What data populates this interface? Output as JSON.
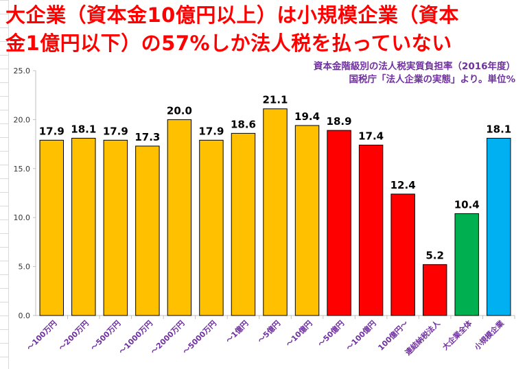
{
  "title_line1": "大企業（資本金10億円以上）は小規模企業（資本",
  "title_line2": "金1億円以下）の57%しか法人税を払っていない",
  "note_line1": "資本金階級別の法人税実質負担率（2016年度）",
  "note_line2": "国税庁「法人企業の実態」より。単位%",
  "chart_data": {
    "type": "bar",
    "title": "大企業（資本金10億円以上）は小規模企業（資本金1億円以下）の57%しか法人税を払っていない",
    "categories": [
      "～100万円",
      "～200万円",
      "～500万円",
      "～1000万円",
      "～2000万円",
      "～5000万円",
      "～1億円",
      "～5億円",
      "～10億円",
      "～50億円",
      "～100億円",
      "100億円～",
      "連結納税法人",
      "大企業全体",
      "小規模企業"
    ],
    "values": [
      17.9,
      18.1,
      17.9,
      17.3,
      20.0,
      17.9,
      18.6,
      21.1,
      19.4,
      18.9,
      17.4,
      12.4,
      5.2,
      10.4,
      18.1
    ],
    "value_labels": [
      "17.9",
      "18.1",
      "17.9",
      "17.3",
      "20.0",
      "17.9",
      "18.6",
      "21.1",
      "19.4",
      "18.9",
      "17.4",
      "12.4",
      "5.2",
      "10.4",
      "18.1"
    ],
    "colors": [
      "#ffc000",
      "#ffc000",
      "#ffc000",
      "#ffc000",
      "#ffc000",
      "#ffc000",
      "#ffc000",
      "#ffc000",
      "#ffc000",
      "#ff0000",
      "#ff0000",
      "#ff0000",
      "#ff0000",
      "#00b050",
      "#00b0f0"
    ],
    "yticks": [
      "0.0",
      "5.0",
      "10.0",
      "15.0",
      "20.0",
      "25.0"
    ],
    "ylim": [
      0,
      25
    ],
    "xlabel": "",
    "ylabel": "",
    "grid": false,
    "legend": "none"
  }
}
